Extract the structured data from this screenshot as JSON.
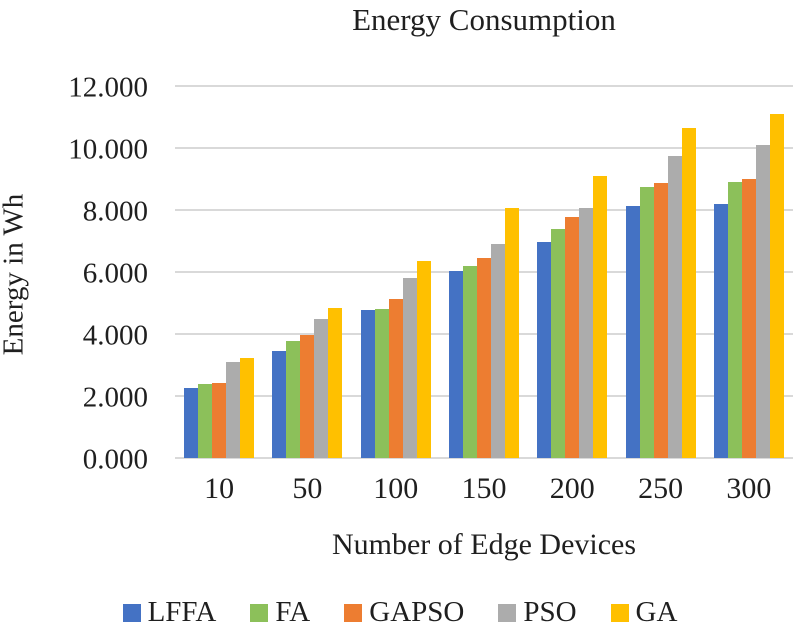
{
  "title": "Energy Consumption",
  "y_axis": {
    "title": "Energy in Wh",
    "tick_labels": [
      "0.000",
      "2.000",
      "4.000",
      "6.000",
      "8.000",
      "10.000",
      "12.000"
    ]
  },
  "x_axis": {
    "title": "Number of Edge Devices"
  },
  "colors": {
    "gridline": "#d9d9d9",
    "background": "#ffffff",
    "text": "#1f1f1f"
  },
  "chart_data": {
    "type": "bar",
    "title": "Energy Consumption",
    "xlabel": "Number of Edge Devices",
    "ylabel": "Energy in Wh",
    "ylim": [
      0,
      12000
    ],
    "ytick_step": 2000,
    "grid": true,
    "legend_position": "bottom",
    "categories": [
      "10",
      "50",
      "100",
      "150",
      "200",
      "250",
      "300"
    ],
    "series": [
      {
        "name": "LFFA",
        "color": "#4472c4",
        "values": [
          2250,
          3450,
          4770,
          6040,
          6980,
          8130,
          8190
        ]
      },
      {
        "name": "FA",
        "color": "#8cc05a",
        "values": [
          2380,
          3780,
          4820,
          6200,
          7380,
          8750,
          8890
        ]
      },
      {
        "name": "GAPSO",
        "color": "#ed7d31",
        "values": [
          2430,
          3980,
          5140,
          6440,
          7770,
          8880,
          9010
        ]
      },
      {
        "name": "PSO",
        "color": "#acacac",
        "values": [
          3100,
          4480,
          5820,
          6900,
          8060,
          9740,
          10100
        ]
      },
      {
        "name": "GA",
        "color": "#ffc000",
        "values": [
          3220,
          4830,
          6350,
          8070,
          9100,
          10650,
          11100
        ]
      }
    ]
  }
}
